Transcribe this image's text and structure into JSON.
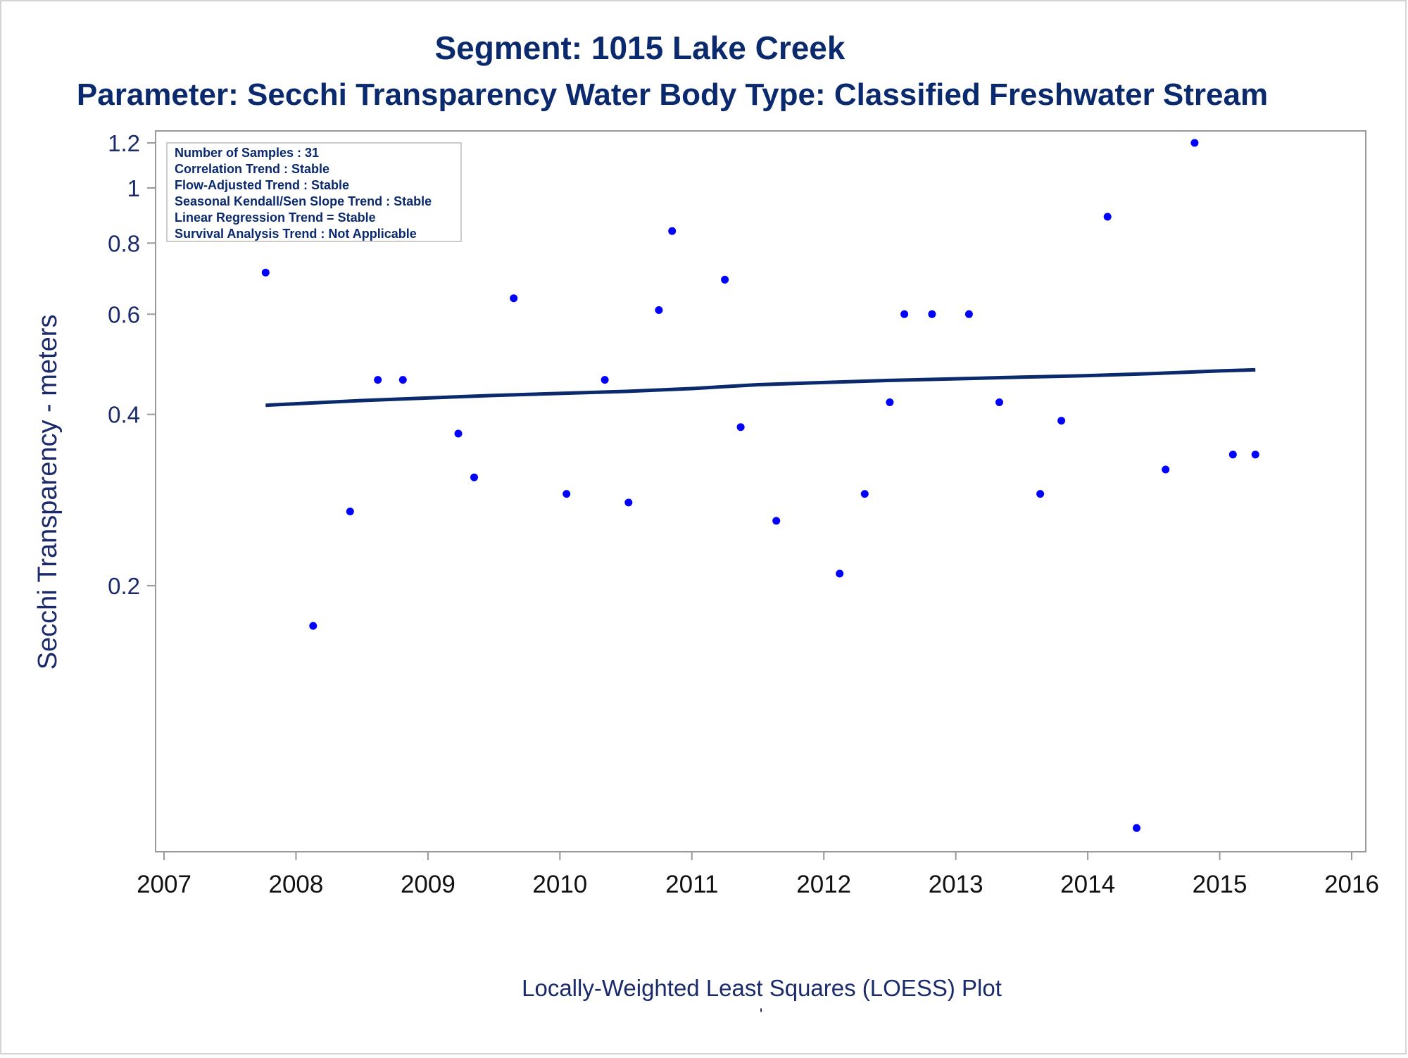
{
  "chart_data": {
    "type": "scatter",
    "title": "Segment: 1015  Lake Creek",
    "subtitle": "Parameter: Secchi Transparency   Water Body Type: Classified Freshwater Stream",
    "xlabel": "Locally-Weighted Least Squares (LOESS) Plot",
    "ylabel": "Secchi Transparency - meters",
    "footnote": "'",
    "y_scale": "log",
    "xlim": [
      2007.0,
      2016.0
    ],
    "ylim": [
      0.075,
      1.23
    ],
    "x_ticks": [
      "2007",
      "2008",
      "2009",
      "2010",
      "2011",
      "2012",
      "2013",
      "2014",
      "2015",
      "2016"
    ],
    "y_ticks": [
      {
        "value": 0.2,
        "label": "0.2"
      },
      {
        "value": 0.4,
        "label": "0.4"
      },
      {
        "value": 0.6,
        "label": "0.6"
      },
      {
        "value": 0.8,
        "label": "0.8"
      },
      {
        "value": 1.0,
        "label": "1"
      },
      {
        "value": 1.2,
        "label": "1.2"
      }
    ],
    "grid": false,
    "legend_box": {
      "position": "top-left",
      "lines": [
        "Number of Samples : 31",
        "Correlation Trend : Stable",
        "Flow-Adjusted Trend : Stable",
        "Seasonal Kendall/Sen Slope Trend : Stable",
        "Linear Regression Trend = Stable",
        "Survival Analysis Trend : Not Applicable"
      ]
    },
    "points": [
      {
        "x": 2007.77,
        "y": 0.71
      },
      {
        "x": 2008.13,
        "y": 0.17
      },
      {
        "x": 2008.41,
        "y": 0.27
      },
      {
        "x": 2008.62,
        "y": 0.46
      },
      {
        "x": 2008.81,
        "y": 0.46
      },
      {
        "x": 2009.23,
        "y": 0.37
      },
      {
        "x": 2009.35,
        "y": 0.31
      },
      {
        "x": 2009.65,
        "y": 0.64
      },
      {
        "x": 2010.05,
        "y": 0.29
      },
      {
        "x": 2010.34,
        "y": 0.46
      },
      {
        "x": 2010.52,
        "y": 0.28
      },
      {
        "x": 2010.75,
        "y": 0.61
      },
      {
        "x": 2010.85,
        "y": 0.84
      },
      {
        "x": 2011.25,
        "y": 0.69
      },
      {
        "x": 2011.37,
        "y": 0.38
      },
      {
        "x": 2011.64,
        "y": 0.26
      },
      {
        "x": 2012.12,
        "y": 0.21
      },
      {
        "x": 2012.31,
        "y": 0.29
      },
      {
        "x": 2012.5,
        "y": 0.42
      },
      {
        "x": 2012.61,
        "y": 0.6
      },
      {
        "x": 2012.82,
        "y": 0.6
      },
      {
        "x": 2013.1,
        "y": 0.6
      },
      {
        "x": 2013.33,
        "y": 0.42
      },
      {
        "x": 2013.64,
        "y": 0.29
      },
      {
        "x": 2013.8,
        "y": 0.39
      },
      {
        "x": 2014.15,
        "y": 0.89
      },
      {
        "x": 2014.37,
        "y": 0.075
      },
      {
        "x": 2014.59,
        "y": 0.32
      },
      {
        "x": 2014.81,
        "y": 1.2
      },
      {
        "x": 2015.1,
        "y": 0.34
      },
      {
        "x": 2015.27,
        "y": 0.34
      }
    ],
    "loess_line": [
      {
        "x": 2007.77,
        "y": 0.415
      },
      {
        "x": 2008.5,
        "y": 0.423
      },
      {
        "x": 2009.5,
        "y": 0.432
      },
      {
        "x": 2010.5,
        "y": 0.439
      },
      {
        "x": 2011.0,
        "y": 0.444
      },
      {
        "x": 2011.5,
        "y": 0.451
      },
      {
        "x": 2012.0,
        "y": 0.455
      },
      {
        "x": 2012.5,
        "y": 0.459
      },
      {
        "x": 2013.0,
        "y": 0.462
      },
      {
        "x": 2013.5,
        "y": 0.465
      },
      {
        "x": 2014.0,
        "y": 0.468
      },
      {
        "x": 2014.5,
        "y": 0.472
      },
      {
        "x": 2015.0,
        "y": 0.477
      },
      {
        "x": 2015.27,
        "y": 0.479
      }
    ],
    "colors": {
      "title": "#0b2a6e",
      "text": "#1a2a6b",
      "points": "#0000ff",
      "line": "#0b2a6e",
      "frame": "#999999"
    }
  }
}
